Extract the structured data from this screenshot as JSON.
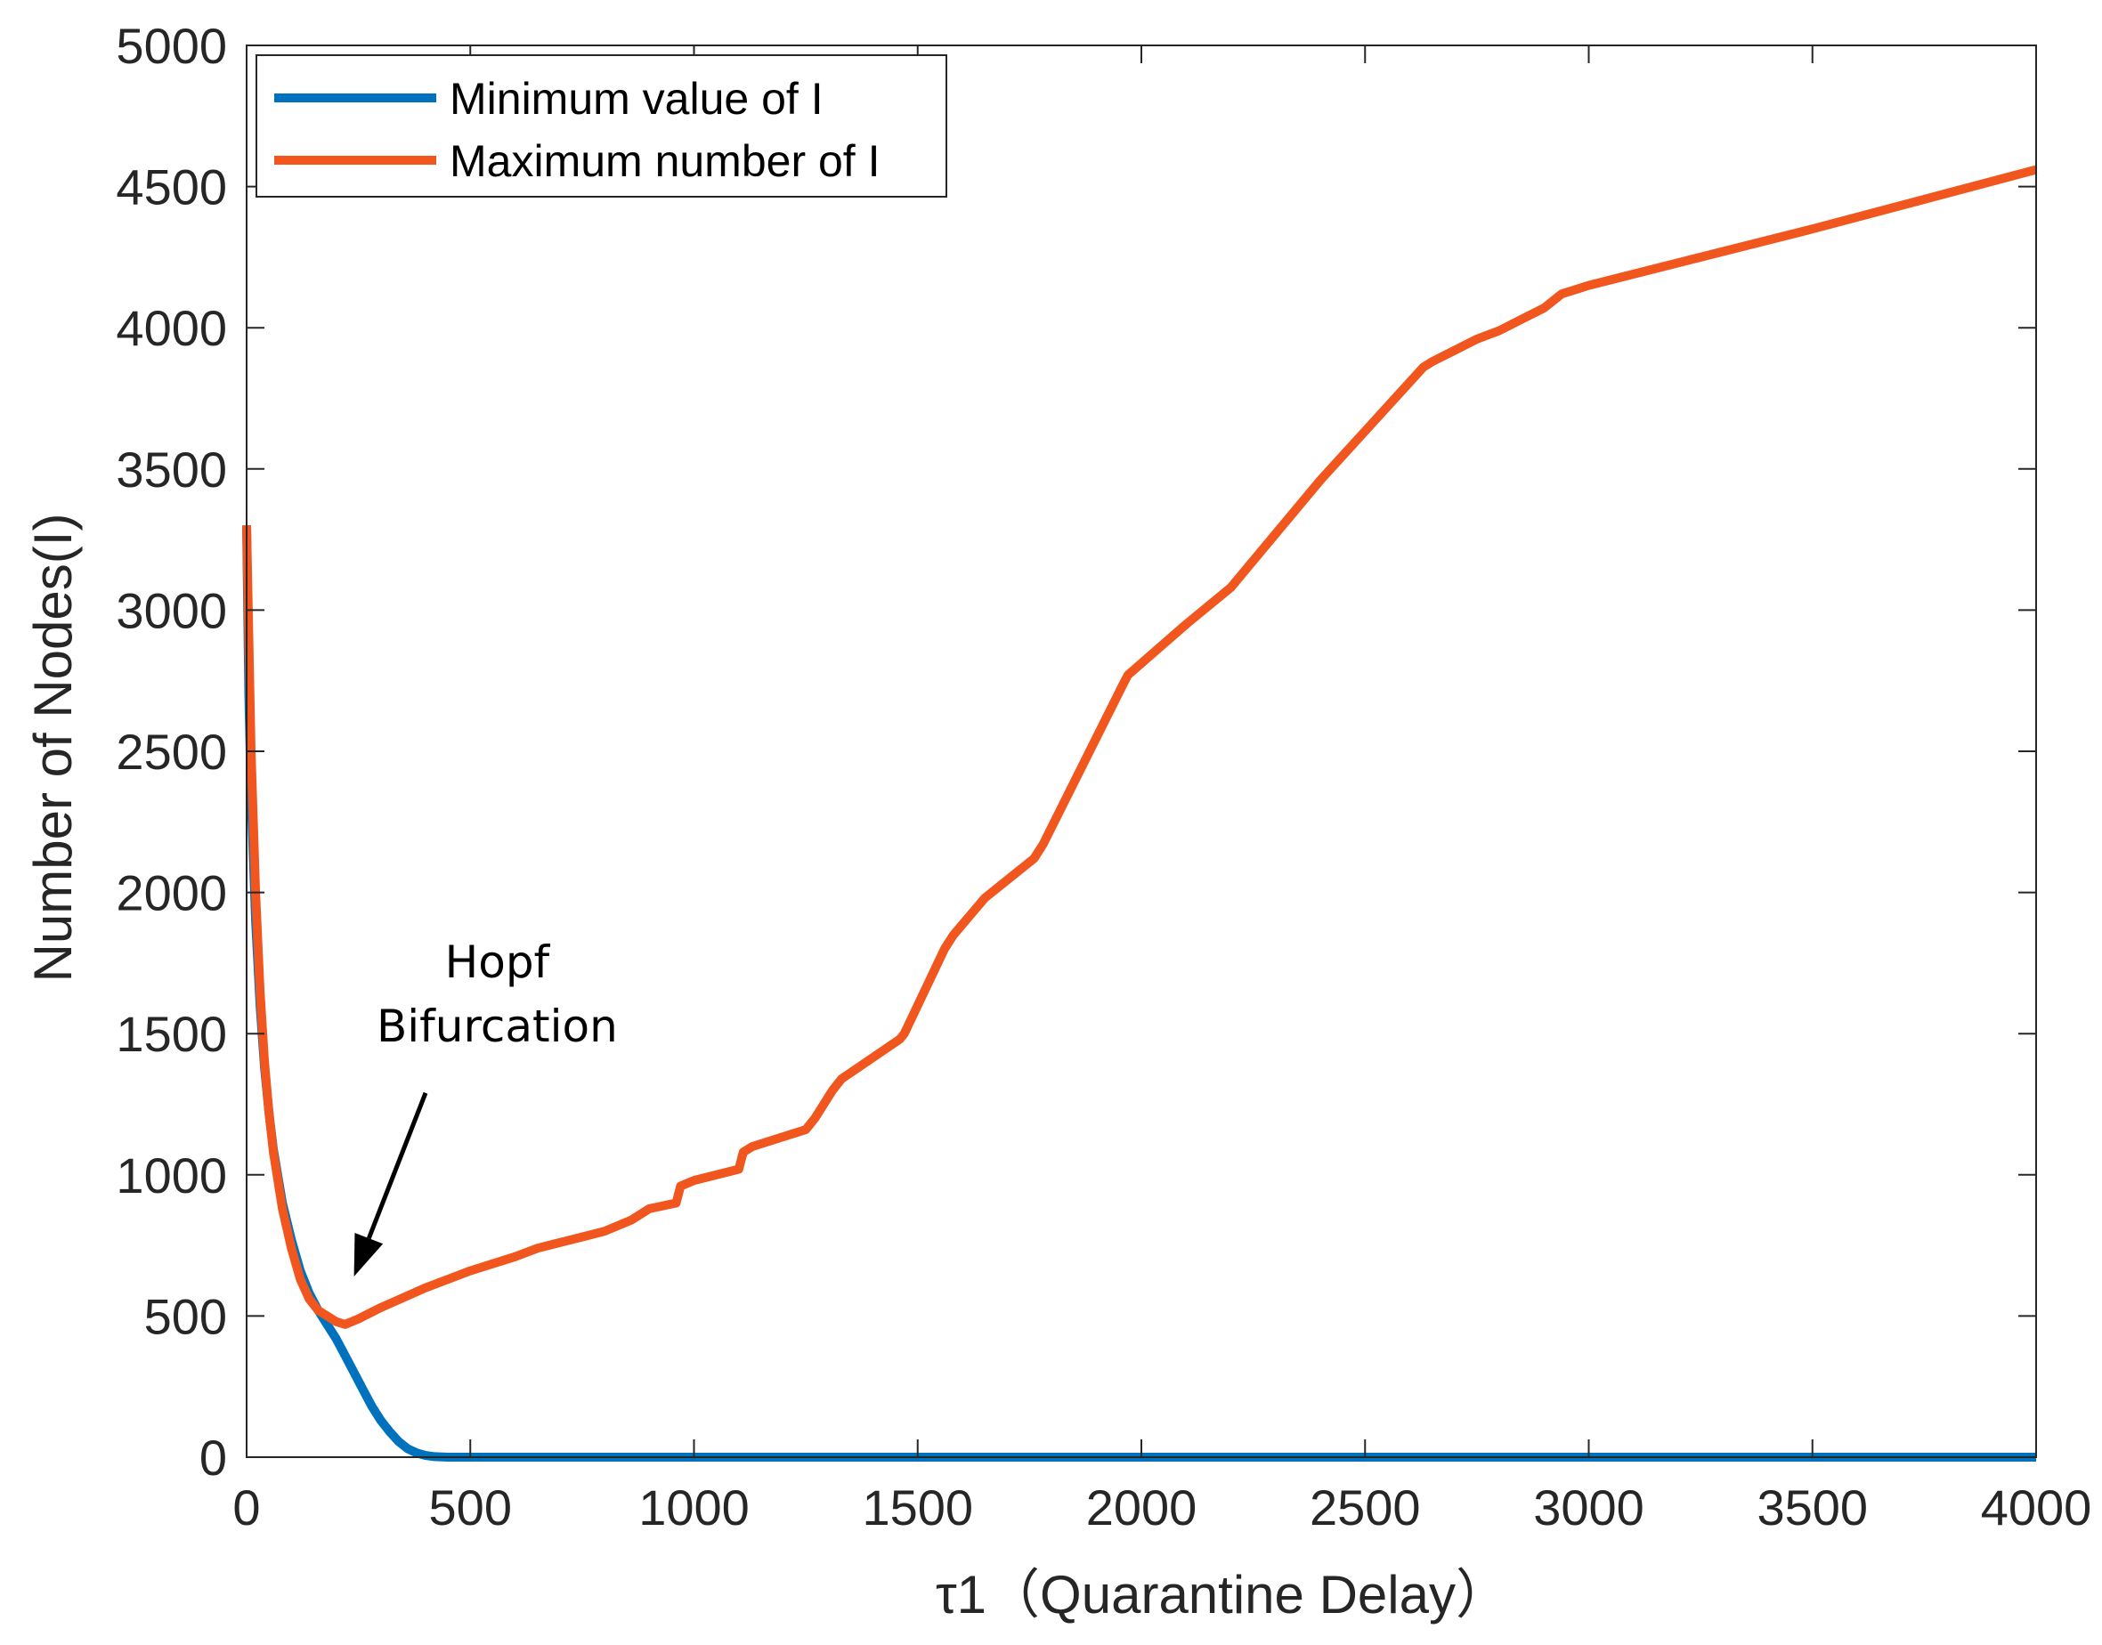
{
  "chart_data": {
    "type": "line",
    "xlabel": "τ1（Quarantine Delay）",
    "ylabel": "Number of Nodes(I)",
    "xlim": [
      0,
      4000
    ],
    "ylim": [
      0,
      5000
    ],
    "xticks": [
      0,
      500,
      1000,
      1500,
      2000,
      2500,
      3000,
      3500,
      4000
    ],
    "yticks": [
      0,
      500,
      1000,
      1500,
      2000,
      2500,
      3000,
      3500,
      4000,
      4500,
      5000
    ],
    "grid": false,
    "legend_position": "top-left",
    "annotation": {
      "lines": [
        "Hopf",
        "Bifurcation"
      ],
      "text_at": [
        560,
        1700
      ],
      "arrow_from": [
        400,
        1290
      ],
      "arrow_to": [
        240,
        640
      ]
    },
    "series": [
      {
        "name": "Minimum value of I",
        "color": "#0072BD",
        "x": [
          0,
          5,
          10,
          20,
          30,
          40,
          50,
          60,
          80,
          100,
          120,
          140,
          160,
          180,
          200,
          220,
          240,
          260,
          280,
          300,
          320,
          340,
          360,
          380,
          400,
          420,
          450,
          500,
          1000,
          2000,
          3000,
          4000
        ],
        "y": [
          3300,
          2700,
          2350,
          1900,
          1600,
          1380,
          1220,
          1090,
          900,
          770,
          660,
          580,
          520,
          470,
          420,
          360,
          300,
          240,
          180,
          130,
          90,
          55,
          30,
          15,
          6,
          2,
          0,
          0,
          0,
          0,
          0,
          0
        ]
      },
      {
        "name": "Maximum number of I",
        "color": "#F0561E",
        "x": [
          0,
          5,
          10,
          20,
          30,
          40,
          50,
          60,
          80,
          100,
          120,
          140,
          160,
          180,
          200,
          220,
          250,
          300,
          400,
          500,
          600,
          650,
          700,
          750,
          800,
          860,
          900,
          960,
          970,
          1000,
          1100,
          1110,
          1130,
          1250,
          1270,
          1310,
          1330,
          1460,
          1470,
          1560,
          1580,
          1650,
          1760,
          1780,
          1960,
          1970,
          2100,
          2200,
          2400,
          2630,
          2650,
          2700,
          2750,
          2800,
          2850,
          2900,
          2940,
          3000,
          3500,
          4000
        ],
        "y": [
          3300,
          2900,
          2500,
          2000,
          1650,
          1400,
          1220,
          1080,
          880,
          740,
          630,
          560,
          520,
          500,
          480,
          470,
          490,
          530,
          600,
          660,
          710,
          740,
          760,
          780,
          800,
          840,
          880,
          900,
          960,
          980,
          1020,
          1080,
          1100,
          1160,
          1200,
          1300,
          1340,
          1480,
          1500,
          1800,
          1850,
          1980,
          2120,
          2170,
          2740,
          2770,
          2950,
          3080,
          3460,
          3860,
          3880,
          3920,
          3960,
          3990,
          4030,
          4070,
          4120,
          4150,
          4350,
          4560
        ]
      }
    ]
  }
}
